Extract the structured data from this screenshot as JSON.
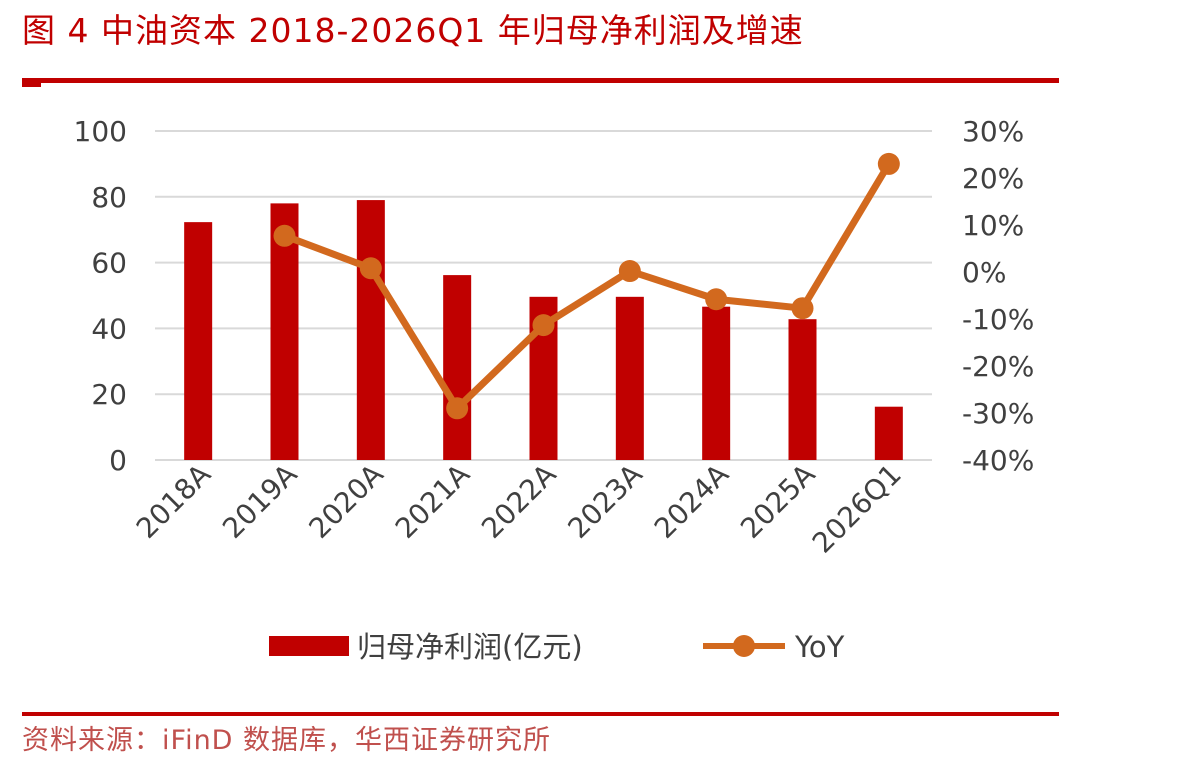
{
  "header": {
    "title": "图 4   中油资本 2018-2026Q1 年归母净利润及增速"
  },
  "footer": {
    "source": "资料来源：iFinD 数据库，华西证券研究所"
  },
  "colors": {
    "bar": "#c00000",
    "line": "#d2691e",
    "accent": "#c00000",
    "grid": "#d9d9d9"
  },
  "chart_data": {
    "type": "bar",
    "title": "",
    "categories": [
      "2018A",
      "2019A",
      "2020A",
      "2021A",
      "2022A",
      "2023A",
      "2024A",
      "2025A",
      "2026Q1"
    ],
    "series": [
      {
        "name": "归母净利润(亿元)",
        "type": "bar",
        "axis": "left",
        "values": [
          72.3,
          78.0,
          79.0,
          56.2,
          49.6,
          49.6,
          46.6,
          42.8,
          16.2
        ]
      },
      {
        "name": "YoY",
        "type": "line",
        "axis": "right",
        "values": [
          null,
          7.7,
          0.8,
          -29.0,
          -11.3,
          0.2,
          -5.8,
          -7.7,
          23.0
        ]
      }
    ],
    "left_axis": {
      "ylim": [
        0,
        100
      ],
      "ticks": [
        "0",
        "20",
        "40",
        "60",
        "80",
        "100"
      ]
    },
    "right_axis": {
      "ylim": [
        -40,
        30
      ],
      "ticks": [
        "-40%",
        "-30%",
        "-20%",
        "-10%",
        "0%",
        "10%",
        "20%",
        "30%"
      ]
    },
    "grid": true,
    "legend_position": "bottom"
  }
}
